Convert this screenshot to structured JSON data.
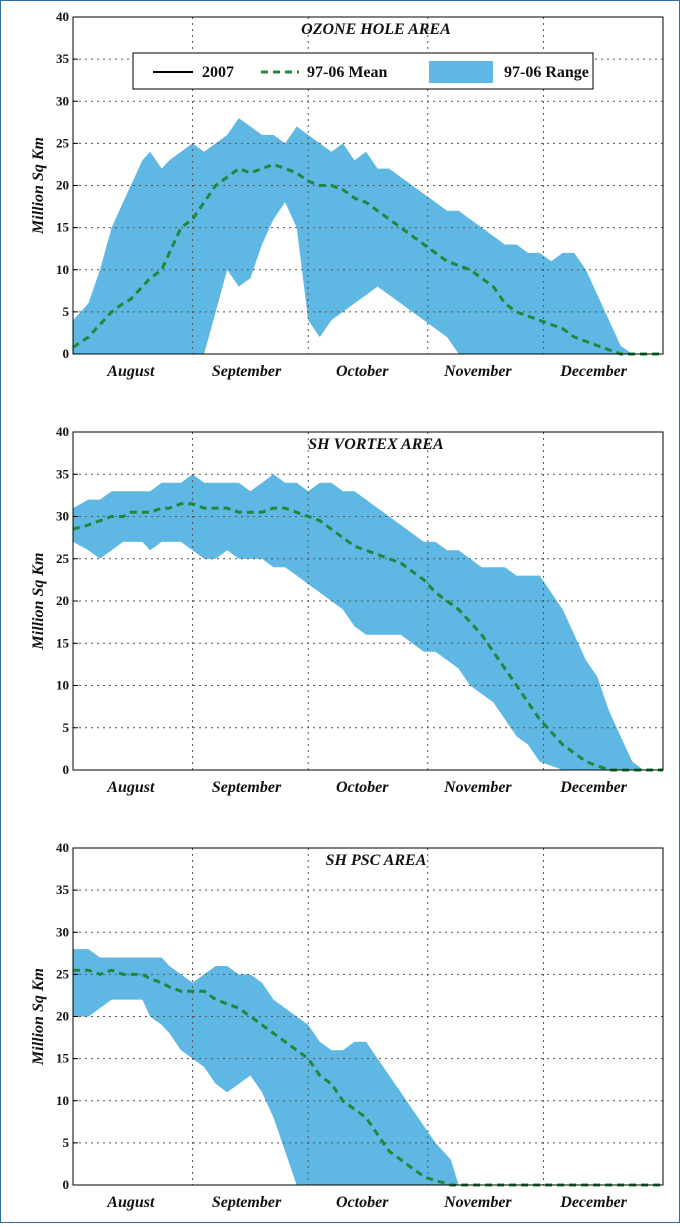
{
  "colors": {
    "range_fill": "#5fb8e4",
    "mean_line": "#1c8a3c",
    "obs_line": "#000000",
    "grid": "#555555",
    "frame": "#2f6e98"
  },
  "legend": {
    "line_label": "2007",
    "mean_label": "97-06 Mean",
    "range_label": "97-06 Range"
  },
  "chart_data": [
    {
      "type": "area",
      "title": "OZONE HOLE AREA",
      "ylabel": "Million Sq Km",
      "xlabel": "",
      "ylim": [
        0,
        40
      ],
      "yticks": [
        0,
        5,
        10,
        15,
        20,
        25,
        30,
        35,
        40
      ],
      "xlim": [
        0,
        153
      ],
      "month_labels": [
        "August",
        "September",
        "October",
        "November",
        "December"
      ],
      "month_label_x": [
        15,
        45,
        75,
        105,
        135
      ],
      "month_boundaries": [
        31,
        61,
        92,
        122
      ],
      "grid": true,
      "legend": "top",
      "series": [
        {
          "name": "97-06 Range",
          "x": [
            0,
            4,
            7,
            10,
            13,
            15,
            18,
            20,
            23,
            25,
            28,
            31,
            34,
            37,
            40,
            43,
            46,
            49,
            52,
            55,
            58,
            61,
            64,
            67,
            70,
            73,
            76,
            79,
            82,
            85,
            88,
            91,
            94,
            97,
            100,
            103,
            106,
            109,
            112,
            115,
            118,
            121,
            124,
            127,
            130,
            133,
            136,
            139,
            142,
            145,
            153
          ],
          "upper": [
            4,
            6,
            10,
            15,
            18,
            20,
            23,
            24,
            22,
            23,
            24,
            25,
            24,
            25,
            26,
            28,
            27,
            26,
            26,
            25,
            27,
            26,
            25,
            24,
            25,
            23,
            24,
            22,
            22,
            21,
            20,
            19,
            18,
            17,
            17,
            16,
            15,
            14,
            13,
            13,
            12,
            12,
            11,
            12,
            12,
            10,
            7,
            4,
            1,
            0,
            0
          ],
          "lower": [
            0,
            0,
            0,
            0,
            0,
            0,
            0,
            0,
            0,
            0,
            0,
            0,
            0,
            5,
            10,
            8,
            9,
            13,
            16,
            18,
            15,
            4,
            2,
            4,
            5,
            6,
            7,
            8,
            7,
            6,
            5,
            4,
            3,
            2,
            0,
            0,
            0,
            0,
            0,
            0,
            0,
            0,
            0,
            0,
            0,
            0,
            0,
            0,
            0,
            0,
            0
          ]
        },
        {
          "name": "97-06 Mean",
          "x": [
            0,
            4,
            7,
            10,
            13,
            15,
            18,
            20,
            23,
            25,
            28,
            31,
            34,
            37,
            40,
            43,
            46,
            49,
            52,
            55,
            58,
            61,
            64,
            67,
            70,
            73,
            76,
            79,
            82,
            85,
            88,
            91,
            94,
            97,
            100,
            103,
            106,
            109,
            112,
            115,
            118,
            121,
            124,
            127,
            130,
            133,
            136,
            139,
            142,
            145,
            153
          ],
          "values": [
            0.8,
            2,
            3.5,
            5,
            6,
            6.5,
            8,
            9,
            10,
            12,
            15,
            16,
            18,
            20,
            21,
            22,
            21.5,
            22,
            22.5,
            22,
            21.5,
            20.5,
            20,
            20,
            19.5,
            18.5,
            18,
            17,
            16,
            15,
            14,
            13,
            12,
            11,
            10.5,
            10,
            9,
            8,
            6,
            5,
            4.5,
            4,
            3.5,
            3,
            2,
            1.5,
            1,
            0.5,
            0,
            0,
            0
          ]
        }
      ]
    },
    {
      "type": "area",
      "title": "SH VORTEX AREA",
      "ylabel": "Million Sq Km",
      "xlabel": "",
      "ylim": [
        0,
        40
      ],
      "yticks": [
        0,
        5,
        10,
        15,
        20,
        25,
        30,
        35,
        40
      ],
      "xlim": [
        0,
        153
      ],
      "month_labels": [
        "August",
        "September",
        "October",
        "November",
        "December"
      ],
      "month_label_x": [
        15,
        45,
        75,
        105,
        135
      ],
      "month_boundaries": [
        31,
        61,
        92,
        122
      ],
      "grid": true,
      "series": [
        {
          "name": "97-06 Range",
          "x": [
            0,
            4,
            7,
            10,
            13,
            15,
            18,
            20,
            23,
            25,
            28,
            31,
            34,
            37,
            40,
            43,
            46,
            49,
            52,
            55,
            58,
            61,
            64,
            67,
            70,
            73,
            76,
            79,
            82,
            85,
            88,
            91,
            94,
            97,
            100,
            103,
            106,
            109,
            112,
            115,
            118,
            121,
            124,
            127,
            130,
            133,
            136,
            139,
            142,
            145,
            148,
            150,
            153
          ],
          "upper": [
            31,
            32,
            32,
            33,
            33,
            33,
            33,
            33,
            34,
            34,
            34,
            35,
            34,
            34,
            34,
            34,
            33,
            34,
            35,
            34,
            34,
            33,
            34,
            34,
            33,
            33,
            32,
            31,
            30,
            29,
            28,
            27,
            27,
            26,
            26,
            25,
            24,
            24,
            24,
            23,
            23,
            23,
            21,
            19,
            16,
            13,
            11,
            7,
            4,
            1,
            0,
            0,
            0
          ],
          "lower": [
            27,
            26,
            25,
            26,
            27,
            27,
            27,
            26,
            27,
            27,
            27,
            26,
            25,
            25,
            26,
            25,
            25,
            25,
            24,
            24,
            23,
            22,
            21,
            20,
            19,
            17,
            16,
            16,
            16,
            16,
            15,
            14,
            14,
            13,
            12,
            10,
            9,
            8,
            6,
            4,
            3,
            1,
            0.5,
            0,
            0,
            0,
            0,
            0,
            0,
            0,
            0,
            0,
            0
          ]
        },
        {
          "name": "97-06 Mean",
          "x": [
            0,
            4,
            7,
            10,
            13,
            15,
            18,
            20,
            23,
            25,
            28,
            31,
            34,
            37,
            40,
            43,
            46,
            49,
            52,
            55,
            58,
            61,
            64,
            67,
            70,
            73,
            76,
            79,
            82,
            85,
            88,
            91,
            94,
            97,
            100,
            103,
            106,
            109,
            112,
            115,
            118,
            121,
            124,
            127,
            130,
            133,
            136,
            139,
            142,
            145,
            148,
            150,
            153
          ],
          "values": [
            28.5,
            29,
            29.5,
            30,
            30,
            30.5,
            30.5,
            30.5,
            31,
            31,
            31.5,
            31.5,
            31,
            31,
            31,
            30.5,
            30.5,
            30.5,
            31,
            31,
            30.5,
            30,
            29.5,
            28.5,
            27.5,
            26.5,
            26,
            25.5,
            25,
            24.5,
            23.5,
            22.5,
            21,
            20,
            19,
            17.5,
            16,
            14,
            12,
            10,
            8,
            6,
            4.5,
            3,
            2,
            1,
            0.5,
            0,
            0,
            0,
            0,
            0,
            0
          ]
        }
      ]
    },
    {
      "type": "area",
      "title": "SH PSC AREA",
      "ylabel": "Million Sq Km",
      "xlabel": "",
      "ylim": [
        0,
        40
      ],
      "yticks": [
        0,
        5,
        10,
        15,
        20,
        25,
        30,
        35,
        40
      ],
      "xlim": [
        0,
        153
      ],
      "month_labels": [
        "August",
        "September",
        "October",
        "November",
        "December"
      ],
      "month_label_x": [
        15,
        45,
        75,
        105,
        135
      ],
      "month_boundaries": [
        31,
        61,
        92,
        122
      ],
      "grid": true,
      "series": [
        {
          "name": "97-06 Range",
          "x": [
            0,
            4,
            7,
            10,
            13,
            15,
            18,
            20,
            23,
            25,
            28,
            31,
            34,
            37,
            40,
            43,
            46,
            49,
            52,
            55,
            58,
            61,
            64,
            67,
            70,
            73,
            76,
            79,
            82,
            85,
            88,
            91,
            94,
            96,
            98,
            100,
            105,
            110,
            120,
            130,
            140,
            153
          ],
          "upper": [
            28,
            28,
            27,
            27,
            27,
            27,
            27,
            27,
            27,
            26,
            25,
            24,
            25,
            26,
            26,
            25,
            25,
            24,
            22,
            21,
            20,
            19,
            17,
            16,
            16,
            17,
            17,
            15,
            13,
            11,
            9,
            7,
            5,
            4,
            3,
            0,
            0,
            0,
            0,
            0,
            0,
            0
          ],
          "lower": [
            20,
            20,
            21,
            22,
            22,
            22,
            22,
            20,
            19,
            18,
            16,
            15,
            14,
            12,
            11,
            12,
            13,
            11,
            8,
            4,
            0,
            0,
            0,
            0,
            0,
            0,
            0,
            0,
            0,
            0,
            0,
            0,
            0,
            0,
            0,
            0,
            0,
            0,
            0,
            0,
            0,
            0
          ]
        },
        {
          "name": "97-06 Mean",
          "x": [
            0,
            4,
            7,
            10,
            13,
            15,
            18,
            20,
            23,
            25,
            28,
            31,
            34,
            37,
            40,
            43,
            46,
            49,
            52,
            55,
            58,
            61,
            64,
            67,
            70,
            73,
            76,
            79,
            82,
            85,
            88,
            91,
            94,
            96,
            98,
            100,
            105,
            110,
            120,
            130,
            140,
            153
          ],
          "values": [
            25.5,
            25.5,
            25,
            25.5,
            25,
            25,
            25,
            24.5,
            24,
            23.5,
            23,
            23,
            23,
            22,
            21.5,
            21,
            20,
            19,
            18,
            17,
            16,
            15,
            13,
            12,
            10,
            9,
            8,
            6,
            4,
            3,
            2,
            1,
            0.5,
            0.3,
            0,
            0,
            0,
            0,
            0,
            0,
            0,
            0
          ]
        }
      ]
    }
  ]
}
